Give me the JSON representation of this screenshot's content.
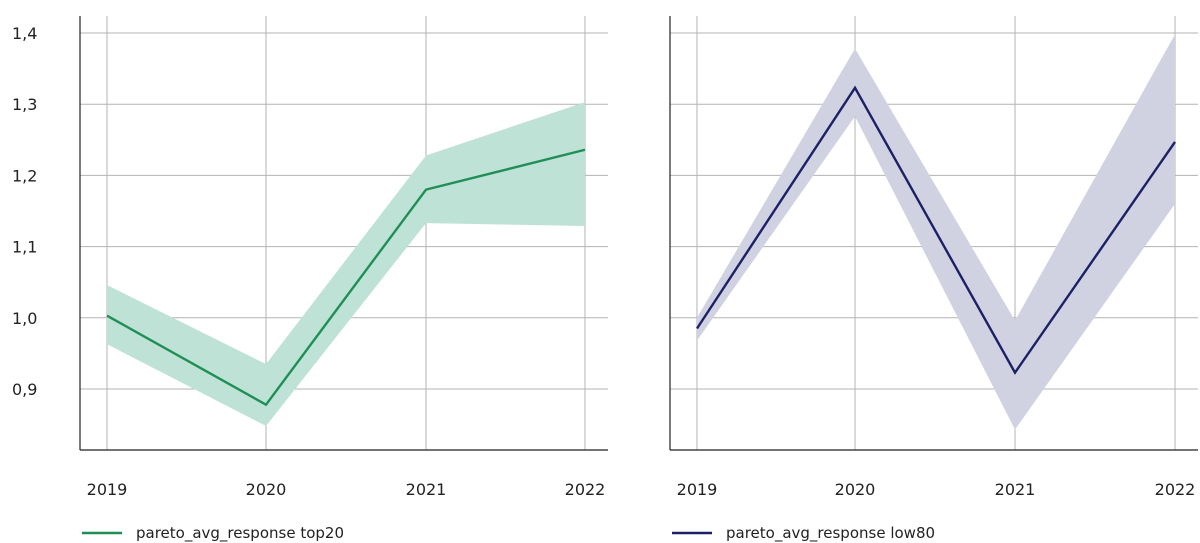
{
  "chart_data": [
    {
      "type": "line",
      "title": "",
      "xlabel": "",
      "ylabel": "",
      "x": [
        "2019",
        "2020",
        "2021",
        "2022"
      ],
      "ylim": [
        0.82,
        1.44
      ],
      "yticks": [
        "0,9",
        "1,0",
        "1,1",
        "1,2",
        "1,3",
        "1,4"
      ],
      "ytick_values": [
        0.9,
        1.0,
        1.1,
        1.2,
        1.3,
        1.4
      ],
      "grid": true,
      "legend_position": "bottom-left",
      "series": [
        {
          "name": "pareto_avg_response top20",
          "color": "#1f8f55",
          "band_color": "#bfe2d6",
          "values": [
            1.003,
            0.878,
            1.18,
            1.236
          ],
          "lower": [
            0.963,
            0.848,
            1.133,
            1.129
          ],
          "upper": [
            1.046,
            0.935,
            1.228,
            1.303
          ]
        }
      ]
    },
    {
      "type": "line",
      "title": "",
      "xlabel": "",
      "ylabel": "",
      "x": [
        "2019",
        "2020",
        "2021",
        "2022"
      ],
      "ylim": [
        0.82,
        1.44
      ],
      "grid": true,
      "legend_position": "bottom-left",
      "series": [
        {
          "name": "pareto_avg_response low80",
          "color": "#1c2166",
          "band_color": "#d0d1e1",
          "values": [
            0.985,
            1.323,
            0.923,
            1.247
          ],
          "lower": [
            0.968,
            1.283,
            0.843,
            1.16
          ],
          "upper": [
            1.0,
            1.378,
            0.996,
            1.398
          ]
        }
      ]
    }
  ]
}
